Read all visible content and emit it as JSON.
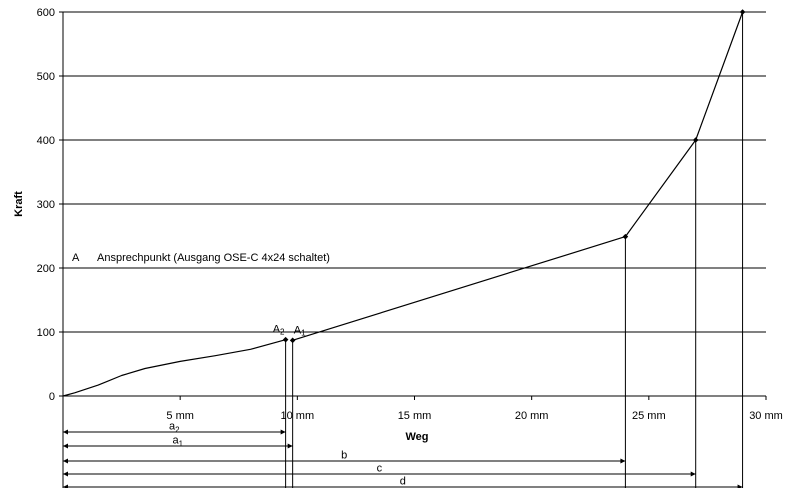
{
  "chart_data": {
    "type": "line",
    "title": "",
    "xlabel": "Weg",
    "ylabel": "Kraft",
    "xlim": [
      0,
      30
    ],
    "ylim": [
      0,
      600
    ],
    "x_ticks": [
      {
        "value": 5,
        "label": "5 mm"
      },
      {
        "value": 10,
        "label": "10 mm"
      },
      {
        "value": 15,
        "label": "15 mm"
      },
      {
        "value": 20,
        "label": "20 mm"
      },
      {
        "value": 25,
        "label": "25 mm"
      },
      {
        "value": 30,
        "label": "30 mm"
      }
    ],
    "y_ticks": [
      0,
      100,
      200,
      300,
      400,
      500,
      600
    ],
    "grid": {
      "horizontal": true,
      "vertical": false
    },
    "series": [
      {
        "x": [
          0,
          0.5,
          1.5,
          2.5,
          3.5,
          5,
          6.5,
          8,
          9.5
        ],
        "y": [
          0,
          5,
          17,
          32,
          43,
          54,
          63,
          73,
          88
        ]
      },
      {
        "x": [
          9.8,
          24.0,
          27.0,
          29.0
        ],
        "y": [
          87,
          249,
          400,
          600
        ]
      }
    ],
    "markers": [
      {
        "x": 9.5,
        "y": 88
      },
      {
        "x": 9.8,
        "y": 87
      },
      {
        "x": 24.0,
        "y": 249
      },
      {
        "x": 27.0,
        "y": 400
      },
      {
        "x": 29.0,
        "y": 600
      }
    ],
    "point_labels": [
      {
        "main": "A",
        "sub": "2",
        "x": 9.5,
        "y": 88
      },
      {
        "main": "A",
        "sub": "1",
        "x": 9.8,
        "y": 87
      }
    ],
    "annotation": {
      "letter": "A",
      "text": "Ansprechpunkt (Ausgang OSE-C 4x24 schaltet)"
    },
    "dimensions": [
      {
        "main": "a",
        "sub": "2",
        "x": 9.5
      },
      {
        "main": "a",
        "sub": "1",
        "x": 9.8
      },
      {
        "main": "b",
        "sub": "",
        "x": 24.0
      },
      {
        "main": "c",
        "sub": "",
        "x": 27.0
      },
      {
        "main": "d",
        "sub": "",
        "x": 29.0
      }
    ]
  }
}
